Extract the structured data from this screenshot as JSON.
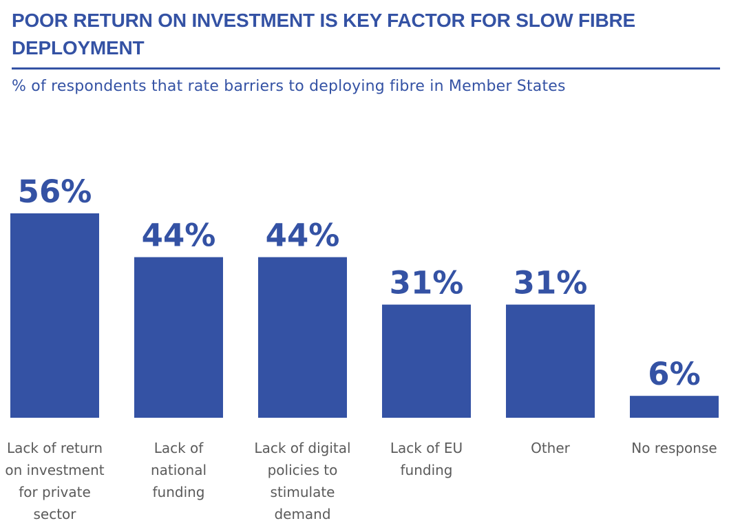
{
  "header": {
    "title": "POOR RETURN ON INVESTMENT IS KEY FACTOR FOR SLOW FIBRE DEPLOYMENT",
    "subtitle": "% of respondents that rate barriers to deploying fibre in Member States"
  },
  "colors": {
    "accent": "#3452a4",
    "bar": "#3452a4",
    "label": "#5a5a5a"
  },
  "chart_data": {
    "type": "bar",
    "title": "POOR RETURN ON INVESTMENT IS KEY FACTOR FOR SLOW FIBRE DEPLOYMENT",
    "subtitle": "% of respondents that rate barriers to deploying fibre in Member States",
    "categories": [
      "Lack of return on investment for private sector",
      "Lack of national funding",
      "Lack of digital policies to stimulate demand",
      "Lack of EU funding",
      "Other",
      "No response"
    ],
    "category_lines": [
      [
        "Lack of return",
        "on investment",
        "for private",
        "sector"
      ],
      [
        "Lack of",
        "national",
        "funding"
      ],
      [
        "Lack of digital",
        "policies to",
        "stimulate",
        "demand"
      ],
      [
        "Lack of EU",
        "funding"
      ],
      [
        "Other"
      ],
      [
        "No response"
      ]
    ],
    "values": [
      56,
      44,
      44,
      31,
      31,
      6
    ],
    "data_labels": [
      "56%",
      "44%",
      "44%",
      "31%",
      "31%",
      "6%"
    ],
    "unit": "%",
    "ylim": [
      0,
      56
    ],
    "grid": false,
    "legend": "none"
  }
}
